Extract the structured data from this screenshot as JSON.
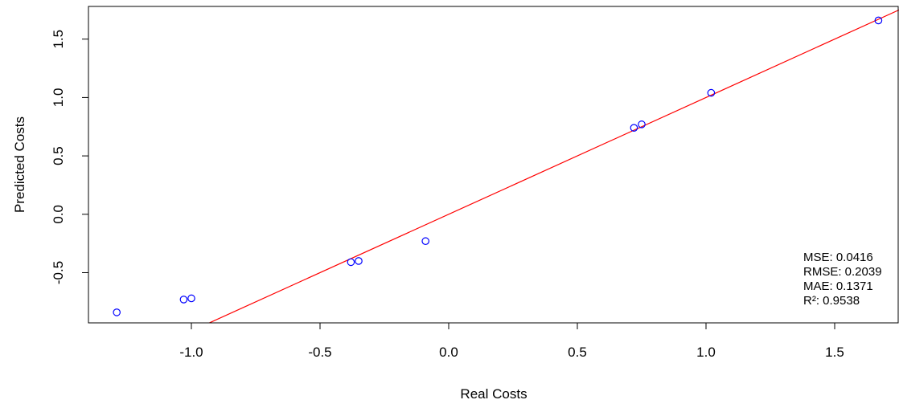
{
  "chart_data": {
    "type": "scatter",
    "title": "",
    "xlabel": "Real Costs",
    "ylabel": "Predicted Costs",
    "xlim": [
      -1.4,
      1.75
    ],
    "ylim": [
      -0.93,
      1.78
    ],
    "x_ticks": [
      -1.0,
      -0.5,
      0.0,
      0.5,
      1.0,
      1.5
    ],
    "x_tick_labels": [
      "-1.0",
      "-0.5",
      "0.0",
      "0.5",
      "1.0",
      "1.5"
    ],
    "y_ticks": [
      -0.5,
      0.0,
      0.5,
      1.0,
      1.5
    ],
    "y_tick_labels": [
      "-0.5",
      "0.0",
      "0.5",
      "1.0",
      "1.5"
    ],
    "grid": false,
    "points": [
      {
        "x": -1.29,
        "y": -0.84
      },
      {
        "x": -1.03,
        "y": -0.73
      },
      {
        "x": -1.0,
        "y": -0.72
      },
      {
        "x": -0.38,
        "y": -0.41
      },
      {
        "x": -0.35,
        "y": -0.4
      },
      {
        "x": -0.09,
        "y": -0.23
      },
      {
        "x": 0.72,
        "y": 0.74
      },
      {
        "x": 0.75,
        "y": 0.77
      },
      {
        "x": 1.02,
        "y": 1.04
      },
      {
        "x": 1.67,
        "y": 1.66
      }
    ],
    "reference_line": {
      "slope": 1.0,
      "intercept": 0.0
    },
    "stats": [
      "MSE: 0.0416",
      "RMSE: 0.2039",
      "MAE: 0.1371",
      "R²: 0.9538"
    ],
    "stats_placement": "bottom-right",
    "colors": {
      "points": "#0000ff",
      "line": "#ff0000",
      "axes": "#000000"
    }
  }
}
